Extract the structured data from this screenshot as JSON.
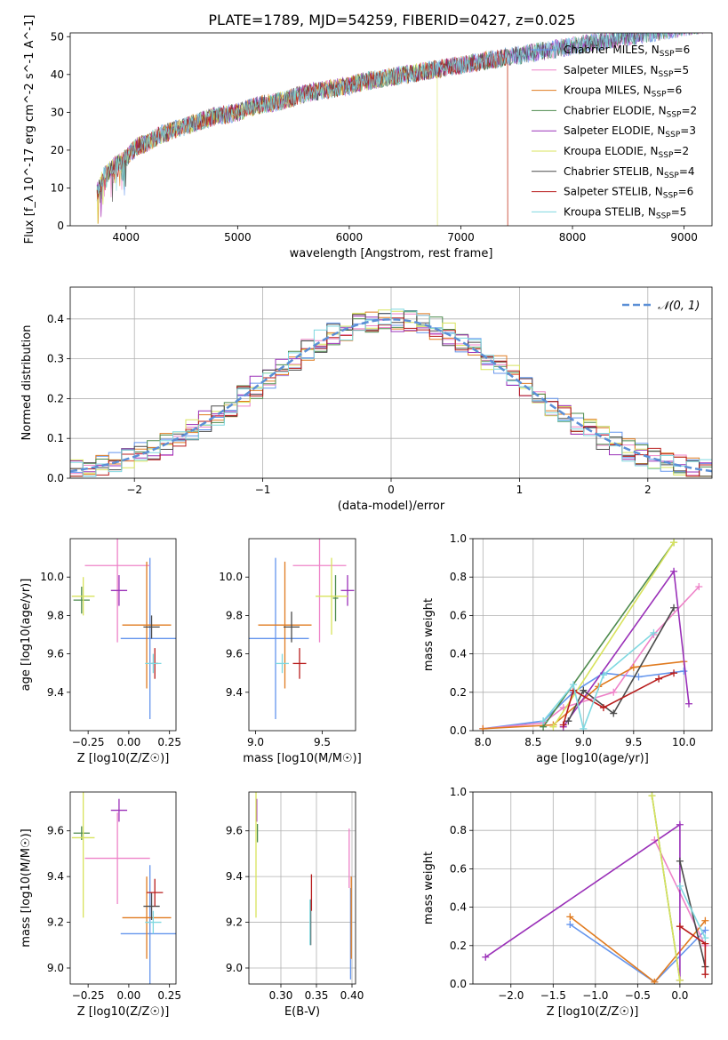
{
  "figure": {
    "title": "PLATE=1789, MJD=54259, FIBERID=0427, z=0.025"
  },
  "palette": {
    "Chabrier MILES": "#6495ed",
    "Salpeter MILES": "#ee82c8",
    "Kroupa MILES": "#e07b20",
    "Chabrier ELODIE": "#4d8a4d",
    "Salpeter ELODIE": "#9a30b8",
    "Kroupa ELODIE": "#d8e35c",
    "Chabrier STELIB": "#4a4a4a",
    "Salpeter STELIB": "#b81c1c",
    "Kroupa STELIB": "#7fd8e0"
  },
  "chart_data": [
    {
      "id": "spectrum",
      "type": "line",
      "xlabel": "wavelength [Angstrom, rest frame]",
      "ylabel": "Flux [f_λ 10^-17 erg cm^-2 s^-1 A^-1]",
      "xlim": [
        3500,
        9250
      ],
      "ylim": [
        0,
        51
      ],
      "xticks": [
        4000,
        5000,
        6000,
        7000,
        8000,
        9000
      ],
      "yticks": [
        0,
        10,
        20,
        30,
        40,
        50
      ],
      "grid": false,
      "legend": "top-right",
      "legend_entries": [
        {
          "label": "Chabrier MILES, N",
          "sub": "SSP",
          "suffix": "=6"
        },
        {
          "label": "Salpeter MILES, N",
          "sub": "SSP",
          "suffix": "=5"
        },
        {
          "label": "Kroupa MILES, N",
          "sub": "SSP",
          "suffix": "=6"
        },
        {
          "label": "Chabrier ELODIE, N",
          "sub": "SSP",
          "suffix": "=2"
        },
        {
          "label": "Salpeter ELODIE, N",
          "sub": "SSP",
          "suffix": "=3"
        },
        {
          "label": "Kroupa ELODIE, N",
          "sub": "SSP",
          "suffix": "=2"
        },
        {
          "label": "Chabrier STELIB, N",
          "sub": "SSP",
          "suffix": "=4"
        },
        {
          "label": "Salpeter STELIB, N",
          "sub": "SSP",
          "suffix": "=6"
        },
        {
          "label": "Kroupa STELIB, N",
          "sub": "SSP",
          "suffix": "=5"
        }
      ],
      "data_trace_x": [
        3740,
        3800,
        3900,
        4000,
        4100,
        4200,
        4300,
        4400,
        4500,
        4600,
        4700,
        4800,
        4900,
        5000,
        5100,
        5200,
        5300,
        5400,
        5500,
        5600,
        5700,
        5800,
        5900,
        6000,
        6100,
        6200,
        6300,
        6400,
        6500,
        6600,
        6700,
        6800,
        6900,
        7000,
        7100,
        7200,
        7300,
        7400,
        7500,
        7600,
        7700,
        7800,
        7900,
        8000,
        8100,
        8200,
        8300,
        8400,
        8500,
        8600,
        8700,
        8800,
        8900,
        9000,
        9100,
        9200
      ],
      "data_trace_y": [
        9,
        13,
        16,
        18,
        21,
        22,
        24,
        25,
        26,
        27,
        28,
        29,
        29.5,
        30,
        31,
        32,
        32.5,
        33,
        34,
        35,
        35.5,
        36,
        36.5,
        37,
        38,
        38.5,
        39,
        39.5,
        40,
        40.5,
        41,
        41.5,
        42,
        42.5,
        43,
        43.5,
        44,
        44.5,
        45,
        45.5,
        46,
        46.5,
        47,
        47.5,
        48,
        48.5,
        49,
        49.5,
        50,
        50.5,
        51,
        51.5,
        52,
        52.5,
        53,
        53.5
      ]
    },
    {
      "id": "residuals",
      "type": "line",
      "xlabel": "(data-model)/error",
      "ylabel": "Normed distribution",
      "xlim": [
        -2.5,
        2.5
      ],
      "ylim": [
        0,
        0.48
      ],
      "xticks": [
        -2,
        -1,
        0,
        1,
        2
      ],
      "yticks": [
        0.0,
        0.1,
        0.2,
        0.3,
        0.4
      ],
      "grid": true,
      "legend": "top-right",
      "legend_entries": [
        {
          "label": "𝒩(0, 1)"
        }
      ],
      "bin_width": 0.1
    },
    {
      "id": "Z-age",
      "type": "scatter",
      "xlabel": "Z [log10(Z/Z☉)]",
      "ylabel": "age  [log10(age/yr)]",
      "xlim": [
        -0.36,
        0.29
      ],
      "ylim": [
        9.2,
        10.2
      ],
      "xticks": [
        -0.25,
        0.0,
        0.25
      ],
      "yticks": [
        9.4,
        9.6,
        9.8,
        10.0
      ],
      "grid": false,
      "points": [
        {
          "model": "Chabrier MILES",
          "x": 0.13,
          "y": 9.68,
          "xerr": 0.18,
          "yerr": 0.42
        },
        {
          "model": "Salpeter MILES",
          "x": -0.07,
          "y": 10.06,
          "xerr": 0.2,
          "yerr": 0.4
        },
        {
          "model": "Kroupa MILES",
          "x": 0.11,
          "y": 9.75,
          "xerr": 0.15,
          "yerr": 0.33
        },
        {
          "model": "Chabrier ELODIE",
          "x": -0.29,
          "y": 9.88,
          "xerr": 0.05,
          "yerr": 0.07
        },
        {
          "model": "Salpeter ELODIE",
          "x": -0.06,
          "y": 9.93,
          "xerr": 0.05,
          "yerr": 0.08
        },
        {
          "model": "Kroupa ELODIE",
          "x": -0.28,
          "y": 9.9,
          "xerr": 0.07,
          "yerr": 0.1
        },
        {
          "model": "Chabrier STELIB",
          "x": 0.14,
          "y": 9.74,
          "xerr": 0.05,
          "yerr": 0.06
        },
        {
          "model": "Salpeter STELIB",
          "x": 0.16,
          "y": 9.55,
          "xerr": 0.02,
          "yerr": 0.08
        },
        {
          "model": "Kroupa STELIB",
          "x": 0.15,
          "y": 9.55,
          "xerr": 0.05,
          "yerr": 0.05
        }
      ]
    },
    {
      "id": "mass-age",
      "type": "scatter",
      "xlabel": "mass [log10(M/M☉)]",
      "ylabel": "",
      "xlim": [
        8.95,
        9.75
      ],
      "ylim": [
        9.2,
        10.2
      ],
      "xticks": [
        9.0,
        9.5
      ],
      "yticks": [
        9.4,
        9.6,
        9.8,
        10.0
      ],
      "grid": false,
      "points": [
        {
          "model": "Chabrier MILES",
          "x": 9.15,
          "y": 9.68,
          "xerr": 0.25,
          "yerr": 0.42
        },
        {
          "model": "Salpeter MILES",
          "x": 9.48,
          "y": 10.06,
          "xerr": 0.2,
          "yerr": 0.4
        },
        {
          "model": "Kroupa MILES",
          "x": 9.22,
          "y": 9.75,
          "xerr": 0.2,
          "yerr": 0.33
        },
        {
          "model": "Chabrier ELODIE",
          "x": 9.6,
          "y": 9.89,
          "xerr": 0.02,
          "yerr": 0.12
        },
        {
          "model": "Salpeter ELODIE",
          "x": 9.69,
          "y": 9.93,
          "xerr": 0.05,
          "yerr": 0.08
        },
        {
          "model": "Kroupa ELODIE",
          "x": 9.57,
          "y": 9.9,
          "xerr": 0.12,
          "yerr": 0.2
        },
        {
          "model": "Chabrier STELIB",
          "x": 9.27,
          "y": 9.74,
          "xerr": 0.06,
          "yerr": 0.08
        },
        {
          "model": "Salpeter STELIB",
          "x": 9.33,
          "y": 9.55,
          "xerr": 0.05,
          "yerr": 0.08
        },
        {
          "model": "Kroupa STELIB",
          "x": 9.2,
          "y": 9.55,
          "xerr": 0.05,
          "yerr": 0.05
        }
      ]
    },
    {
      "id": "age-weight",
      "type": "line",
      "xlabel": "age  [log10(age/yr)]",
      "ylabel": "mass weight",
      "xlim": [
        7.9,
        10.28
      ],
      "ylim": [
        0,
        1.0
      ],
      "xticks": [
        8.0,
        8.5,
        9.0,
        9.5,
        10.0
      ],
      "yticks": [
        0.0,
        0.2,
        0.4,
        0.6,
        0.8,
        1.0
      ],
      "grid": true,
      "series": [
        {
          "model": "Chabrier MILES",
          "x": [
            8.0,
            8.6,
            8.9,
            9.2,
            9.55,
            10.0
          ],
          "y": [
            0.01,
            0.05,
            0.2,
            0.3,
            0.28,
            0.31
          ]
        },
        {
          "model": "Salpeter MILES",
          "x": [
            8.0,
            8.6,
            8.8,
            9.3,
            9.7,
            10.15
          ],
          "y": [
            0.01,
            0.04,
            0.12,
            0.2,
            0.5,
            0.75
          ]
        },
        {
          "model": "Kroupa MILES",
          "x": [
            8.0,
            8.7,
            9.15,
            9.5,
            10.0
          ],
          "y": [
            0.01,
            0.03,
            0.23,
            0.33,
            0.36
          ]
        },
        {
          "model": "Chabrier ELODIE",
          "x": [
            8.6,
            9.9
          ],
          "y": [
            0.02,
            0.98
          ]
        },
        {
          "model": "Salpeter ELODIE",
          "x": [
            8.8,
            9.9,
            10.05
          ],
          "y": [
            0.02,
            0.83,
            0.14
          ]
        },
        {
          "model": "Kroupa ELODIE",
          "x": [
            8.7,
            9.9
          ],
          "y": [
            0.02,
            0.98
          ]
        },
        {
          "model": "Chabrier STELIB",
          "x": [
            8.85,
            9.0,
            9.3,
            9.9
          ],
          "y": [
            0.05,
            0.21,
            0.09,
            0.64
          ]
        },
        {
          "model": "Salpeter STELIB",
          "x": [
            8.8,
            8.9,
            9.2,
            9.75,
            9.9
          ],
          "y": [
            0.03,
            0.21,
            0.12,
            0.27,
            0.3
          ]
        },
        {
          "model": "Kroupa STELIB",
          "x": [
            8.6,
            8.9,
            9.0,
            9.2,
            9.7
          ],
          "y": [
            0.05,
            0.24,
            0.01,
            0.29,
            0.51
          ]
        }
      ]
    },
    {
      "id": "Z-mass",
      "type": "scatter",
      "xlabel": "Z [log10(Z/Z☉)]",
      "ylabel": "mass [log10(M/M☉)]",
      "xlim": [
        -0.36,
        0.29
      ],
      "ylim": [
        8.93,
        9.77
      ],
      "xticks": [
        -0.25,
        0.0,
        0.25
      ],
      "yticks": [
        9.0,
        9.2,
        9.4,
        9.6
      ],
      "grid": false,
      "points": [
        {
          "model": "Chabrier MILES",
          "x": 0.13,
          "y": 9.15,
          "xerr": 0.18,
          "yerr": 0.3
        },
        {
          "model": "Salpeter MILES",
          "x": -0.07,
          "y": 9.48,
          "xerr": 0.2,
          "yerr": 0.2
        },
        {
          "model": "Kroupa MILES",
          "x": 0.11,
          "y": 9.22,
          "xerr": 0.15,
          "yerr": 0.18
        },
        {
          "model": "Chabrier ELODIE",
          "x": -0.29,
          "y": 9.59,
          "xerr": 0.05,
          "yerr": 0.03
        },
        {
          "model": "Salpeter ELODIE",
          "x": -0.06,
          "y": 9.69,
          "xerr": 0.05,
          "yerr": 0.05
        },
        {
          "model": "Kroupa ELODIE",
          "x": -0.28,
          "y": 9.57,
          "xerr": 0.07,
          "yerr": 0.35
        },
        {
          "model": "Chabrier STELIB",
          "x": 0.14,
          "y": 9.27,
          "xerr": 0.05,
          "yerr": 0.06
        },
        {
          "model": "Salpeter STELIB",
          "x": 0.16,
          "y": 9.33,
          "xerr": 0.05,
          "yerr": 0.06
        },
        {
          "model": "Kroupa STELIB",
          "x": 0.15,
          "y": 9.2,
          "xerr": 0.05,
          "yerr": 0.05
        }
      ]
    },
    {
      "id": "EBV-mass",
      "type": "scatter",
      "xlabel": "E(B-V)",
      "ylabel": "",
      "xlim": [
        0.255,
        0.405
      ],
      "ylim": [
        8.93,
        9.77
      ],
      "xticks": [
        0.3,
        0.35,
        0.4
      ],
      "yticks": [
        9.0,
        9.2,
        9.4,
        9.6
      ],
      "grid": true,
      "points": [
        {
          "model": "Chabrier MILES",
          "x": 0.398,
          "y": 9.15,
          "xerr": 0,
          "yerr": 0.2
        },
        {
          "model": "Salpeter MILES",
          "x": 0.396,
          "y": 9.48,
          "xerr": 0,
          "yerr": 0.13
        },
        {
          "model": "Kroupa MILES",
          "x": 0.399,
          "y": 9.22,
          "xerr": 0,
          "yerr": 0.18
        },
        {
          "model": "Chabrier ELODIE",
          "x": 0.267,
          "y": 9.59,
          "xerr": 0,
          "yerr": 0.04
        },
        {
          "model": "Salpeter ELODIE",
          "x": 0.266,
          "y": 9.69,
          "xerr": 0,
          "yerr": 0.05
        },
        {
          "model": "Kroupa ELODIE",
          "x": 0.265,
          "y": 9.57,
          "xerr": 0,
          "yerr": 0.35
        },
        {
          "model": "Chabrier STELIB",
          "x": 0.342,
          "y": 9.2,
          "xerr": 0,
          "yerr": 0.1
        },
        {
          "model": "Salpeter STELIB",
          "x": 0.343,
          "y": 9.33,
          "xerr": 0,
          "yerr": 0.08
        },
        {
          "model": "Kroupa STELIB",
          "x": 0.341,
          "y": 9.2,
          "xerr": 0,
          "yerr": 0.1
        }
      ]
    },
    {
      "id": "Z-weight",
      "type": "line",
      "xlabel": "Z [log10(Z/Z☉)]",
      "ylabel": "mass weight",
      "xlim": [
        -2.45,
        0.38
      ],
      "ylim": [
        0,
        1.0
      ],
      "xticks": [
        -2.0,
        -1.5,
        -1.0,
        -0.5,
        0.0
      ],
      "yticks": [
        0.0,
        0.2,
        0.4,
        0.6,
        0.8,
        1.0
      ],
      "grid": true,
      "series": [
        {
          "model": "Chabrier MILES",
          "x": [
            -1.3,
            -0.3,
            0.3
          ],
          "y": [
            0.31,
            0.01,
            0.28
          ]
        },
        {
          "model": "Salpeter MILES",
          "x": [
            -0.3,
            0.3
          ],
          "y": [
            0.75,
            0.2
          ]
        },
        {
          "model": "Kroupa MILES",
          "x": [
            -1.3,
            -0.3,
            0.3
          ],
          "y": [
            0.35,
            0.01,
            0.33
          ]
        },
        {
          "model": "Chabrier ELODIE",
          "x": [
            -0.33,
            0.0
          ],
          "y": [
            0.98,
            0.02
          ]
        },
        {
          "model": "Salpeter ELODIE",
          "x": [
            -2.3,
            0.0,
            0.0
          ],
          "y": [
            0.14,
            0.83,
            0.02
          ]
        },
        {
          "model": "Kroupa ELODIE",
          "x": [
            -0.33,
            0.0
          ],
          "y": [
            0.98,
            0.02
          ]
        },
        {
          "model": "Chabrier STELIB",
          "x": [
            0.0,
            0.3
          ],
          "y": [
            0.64,
            0.09
          ]
        },
        {
          "model": "Salpeter STELIB",
          "x": [
            0.0,
            0.3,
            0.3
          ],
          "y": [
            0.3,
            0.21,
            0.05
          ]
        },
        {
          "model": "Kroupa STELIB",
          "x": [
            0.0,
            0.3
          ],
          "y": [
            0.51,
            0.24
          ]
        }
      ]
    }
  ]
}
